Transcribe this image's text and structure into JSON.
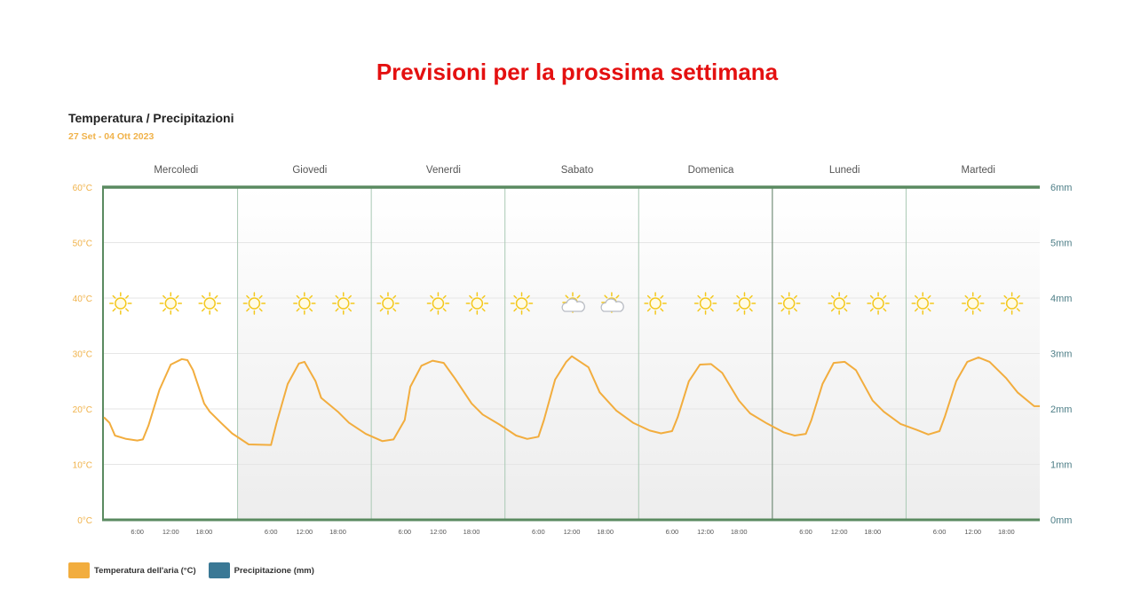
{
  "header": {
    "title": "Previsioni per la prossima settimana"
  },
  "chart_data": {
    "type": "line",
    "title": "Temperatura / Precipitazioni",
    "subtitle": "27 Set - 04 Ott 2023",
    "days": [
      "Mercoledi",
      "Giovedi",
      "Venerdi",
      "Sabato",
      "Domenica",
      "Lunedi",
      "Martedi"
    ],
    "hour_ticks": [
      "6:00",
      "12:00",
      "18:00"
    ],
    "y_left": {
      "label": "",
      "min": 0,
      "max": 60,
      "ticks": [
        "0°C",
        "10°C",
        "20°C",
        "30°C",
        "40°C",
        "50°C",
        "60°C"
      ]
    },
    "y_right": {
      "label": "",
      "min": 0,
      "max": 6,
      "ticks": [
        "0mm",
        "1mm",
        "2mm",
        "3mm",
        "4mm",
        "5mm",
        "6mm"
      ]
    },
    "grid": true,
    "x_hours": [
      0,
      1,
      2,
      4,
      6,
      7,
      8,
      10,
      12,
      14,
      15,
      16,
      18,
      19,
      21,
      23,
      26,
      30,
      31,
      33,
      35,
      36,
      38,
      39,
      42,
      44,
      47,
      50,
      52,
      54,
      55,
      57,
      59,
      61,
      63,
      66,
      68,
      71,
      74,
      76,
      78,
      79,
      81,
      83,
      84,
      87,
      89,
      92,
      95,
      98,
      100,
      102,
      103,
      105,
      107,
      109,
      111,
      114,
      116,
      119,
      122,
      124,
      126,
      127,
      129,
      131,
      133,
      135,
      138,
      140,
      143,
      146,
      148,
      150,
      151,
      153,
      155,
      157,
      159,
      162,
      164,
      167,
      168
    ],
    "series": [
      {
        "name": "Temperatura dell'aria (°C)",
        "color": "#f2ad3e",
        "values": [
          18.5,
          17.5,
          15.2,
          14.6,
          14.3,
          14.5,
          17,
          23.5,
          28,
          29,
          28.8,
          27,
          21,
          19.5,
          17.5,
          15.6,
          13.6,
          13.5,
          17.5,
          24.5,
          28.2,
          28.5,
          25,
          22,
          19.5,
          17.5,
          15.5,
          14.2,
          14.5,
          18,
          24,
          27.8,
          28.7,
          28.3,
          25.5,
          21,
          19,
          17.2,
          15.2,
          14.6,
          15,
          18,
          25.3,
          28.5,
          29.5,
          27.5,
          23,
          19.7,
          17.5,
          16.1,
          15.6,
          16,
          18.5,
          25,
          28,
          28.1,
          26.5,
          21.5,
          19.2,
          17.4,
          15.8,
          15.2,
          15.5,
          18,
          24.5,
          28.3,
          28.5,
          27,
          21.5,
          19.5,
          17.3,
          16.2,
          15.4,
          16,
          18.7,
          25,
          28.5,
          29.3,
          28.5,
          25.5,
          23,
          20.5,
          20.5
        ]
      }
    ],
    "precipitation": {
      "name": "Precipitazione (mm)",
      "color": "#3a7895",
      "values": []
    },
    "weather_icons": [
      "sun-icon",
      "sun-icon",
      "sun-icon",
      "sun-icon",
      "sun-icon",
      "sun-icon",
      "sun-icon",
      "sun-icon",
      "sun-icon",
      "sun-icon",
      "sun-cloud-icon",
      "sun-cloud-icon",
      "sun-icon",
      "sun-icon",
      "sun-icon",
      "sun-icon",
      "sun-icon",
      "sun-icon",
      "sun-icon",
      "sun-icon",
      "sun-icon"
    ],
    "weather_icon_hours": [
      3,
      12,
      19,
      27,
      36,
      43,
      51,
      60,
      67,
      75,
      84,
      91,
      99,
      108,
      115,
      123,
      132,
      139,
      147,
      156,
      163
    ]
  },
  "legend": {
    "items": [
      {
        "label": "Temperatura dell'aria (°C)",
        "color": "#f2ad3e"
      },
      {
        "label": "Precipitazione (mm)",
        "color": "#3a7895"
      }
    ]
  },
  "colors": {
    "border": "#5a8a60",
    "grid": "#e6e6e6",
    "left_axis_text": "#f0b24a",
    "right_axis_text": "#4f7f88",
    "sun": "#f4c81c",
    "cloud": "#b8bcc4"
  }
}
